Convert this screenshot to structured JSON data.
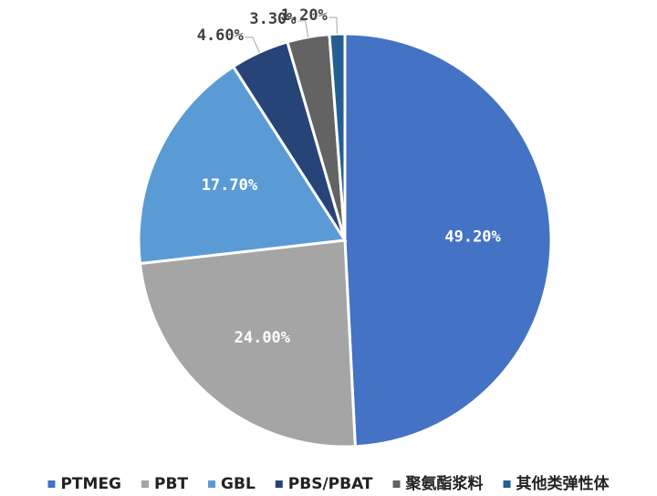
{
  "chart_data": {
    "type": "pie",
    "categories": [
      "PTMEG",
      "PBT",
      "GBL",
      "PBS/PBAT",
      "聚氨酯浆料",
      "其他类弹性体"
    ],
    "values": [
      49.2,
      24.0,
      17.7,
      4.6,
      3.3,
      1.2
    ],
    "value_labels": [
      "49.20%",
      "24.00%",
      "17.70%",
      "4.60%",
      "3.30%",
      "1.20%"
    ],
    "colors": [
      "#4472c4",
      "#a5a5a5",
      "#5b9bd5",
      "#264478",
      "#636363",
      "#255e91"
    ],
    "legend": "bottom"
  }
}
